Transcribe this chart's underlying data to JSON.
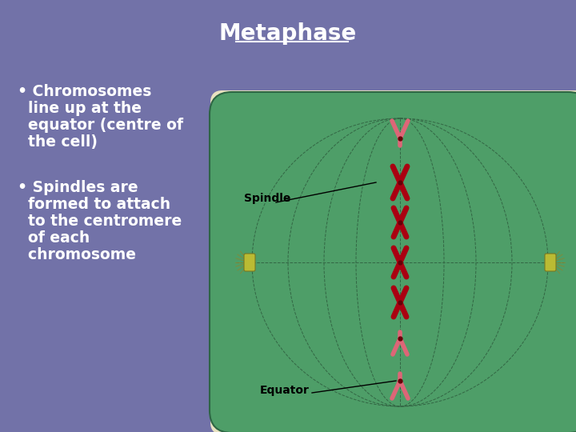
{
  "background_color": "#7272a8",
  "title": "Metaphase",
  "title_fontsize": 20,
  "title_color": "white",
  "bullet_fontsize": 13.5,
  "bullet_color": "white",
  "cell_bg": "#e8e2c0",
  "cell_fill": "#4e9e68",
  "cell_outline": "#2d6644",
  "spindle_label": "Spindle",
  "equator_label": "Equator",
  "chrom_color_dark": "#aa0011",
  "chrom_color_light": "#dd6677",
  "spindle_line_color": "#336644",
  "centriole_color": "#aaaa22"
}
